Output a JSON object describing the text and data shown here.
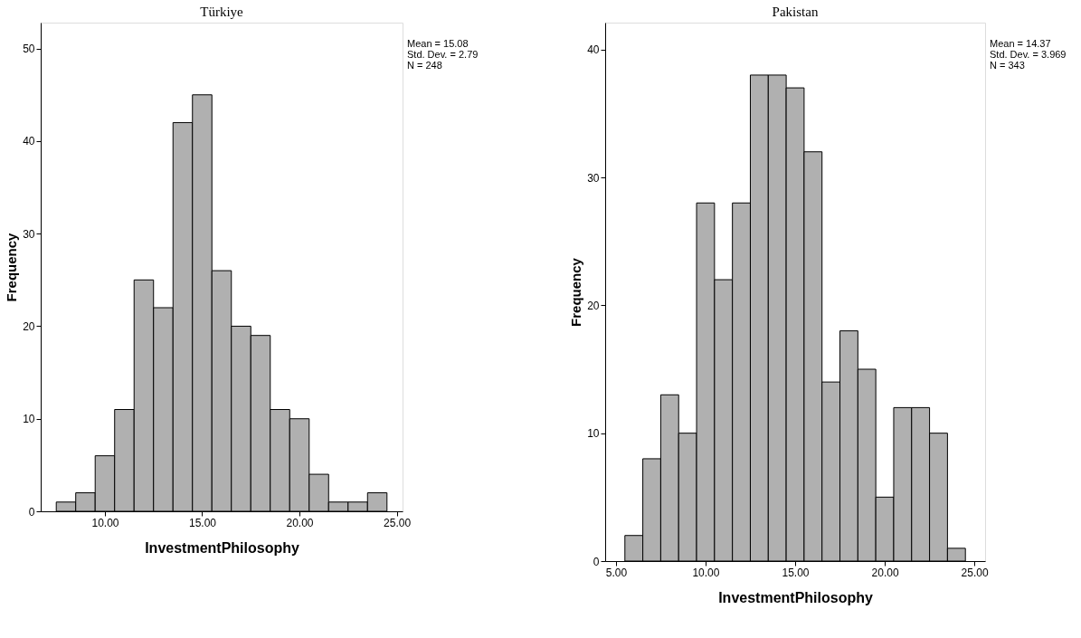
{
  "chart_data": [
    {
      "type": "histogram",
      "title": "Türkiye",
      "xlabel": "InvestmentPhilosophy",
      "ylabel": "Frequency",
      "bins": [
        7.5,
        8.5,
        9.5,
        10.5,
        11.5,
        12.5,
        13.5,
        14.5,
        15.5,
        16.5,
        17.5,
        18.5,
        19.5,
        20.5,
        21.5,
        22.5,
        23.5,
        24.5
      ],
      "values": [
        1,
        2,
        6,
        11,
        25,
        22,
        42,
        45,
        26,
        20,
        19,
        11,
        10,
        4,
        1,
        1,
        2
      ],
      "color": "#b0b0b0",
      "xlim": [
        6.7,
        25.3
      ],
      "xticks": [
        {
          "value": 10,
          "label": "10.00"
        },
        {
          "value": 15,
          "label": "15.00"
        },
        {
          "value": 20,
          "label": "20.00"
        },
        {
          "value": 25,
          "label": "25.00"
        }
      ],
      "ylim": [
        0,
        52.8
      ],
      "yticks": [
        0,
        10,
        20,
        30,
        40,
        50
      ],
      "annotations": [
        "Mean = 15.08",
        "Std. Dev. = 2.79",
        "N = 248"
      ],
      "grid": false
    },
    {
      "type": "histogram",
      "title": "Pakistan",
      "xlabel": "InvestmentPhilosophy",
      "ylabel": "Frequency",
      "bins": [
        5.5,
        6.5,
        7.5,
        8.5,
        9.5,
        10.5,
        11.5,
        12.5,
        13.5,
        14.5,
        15.5,
        16.5,
        17.5,
        18.5,
        19.5,
        20.5,
        21.5,
        22.5,
        23.5,
        24.5
      ],
      "values": [
        2,
        8,
        13,
        10,
        28,
        22,
        28,
        38,
        38,
        37,
        32,
        14,
        18,
        15,
        5,
        12,
        12,
        10,
        1
      ],
      "color": "#b0b0b0",
      "xlim": [
        4.4,
        25.6
      ],
      "xticks": [
        {
          "value": 5,
          "label": "5.00"
        },
        {
          "value": 10,
          "label": "10.00"
        },
        {
          "value": 15,
          "label": "15.00"
        },
        {
          "value": 20,
          "label": "20.00"
        },
        {
          "value": 25,
          "label": "25.00"
        }
      ],
      "ylim": [
        0,
        42.1
      ],
      "yticks": [
        0,
        10,
        20,
        30,
        40
      ],
      "annotations": [
        "Mean = 14.37",
        "Std. Dev. = 3.969",
        "N = 343"
      ],
      "grid": false
    }
  ]
}
